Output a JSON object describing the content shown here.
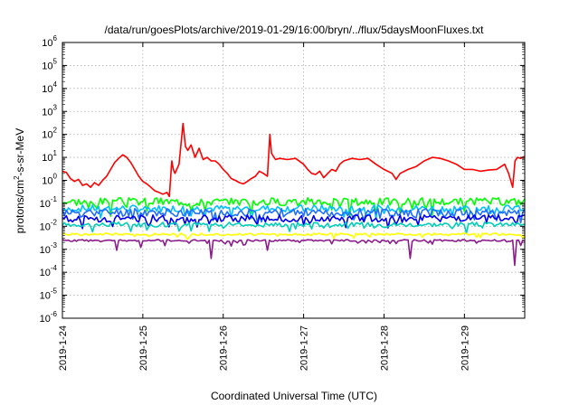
{
  "chart_data": {
    "type": "line",
    "title": "/data/run/goesPlots/archive/2019-01-29/16:00/bryn/../flux/5daysMoonFluxes.txt",
    "xlabel": "Coordinated Universal Time (UTC)",
    "ylabel_parts": {
      "base": "protons/cm",
      "sup": "2",
      "tail": "-s-sr-MeV"
    },
    "yscale": "log",
    "ylim": [
      1e-06,
      1000000.0
    ],
    "y_tick_exponents": [
      -6,
      -5,
      -4,
      -3,
      -2,
      -1,
      0,
      1,
      2,
      3,
      4,
      5,
      6
    ],
    "y_tick_base": "10",
    "xlim_days": [
      0,
      5.75
    ],
    "x_tick_labels": [
      "2019-1-24",
      "2019-1-25",
      "2019-1-26",
      "2019-1-27",
      "2019-1-28",
      "2019-1-29"
    ],
    "x_tick_days": [
      0,
      1,
      2,
      3,
      4,
      5
    ],
    "grid": true,
    "series": [
      {
        "color": "#ff0000",
        "points": [
          [
            0,
            2.5
          ],
          [
            0.05,
            2.2
          ],
          [
            0.1,
            1.2
          ],
          [
            0.15,
            0.9
          ],
          [
            0.2,
            1.1
          ],
          [
            0.25,
            0.6
          ],
          [
            0.3,
            0.7
          ],
          [
            0.35,
            0.5
          ],
          [
            0.4,
            0.8
          ],
          [
            0.45,
            0.6
          ],
          [
            0.5,
            1.0
          ],
          [
            0.55,
            1.5
          ],
          [
            0.6,
            3
          ],
          [
            0.65,
            6
          ],
          [
            0.7,
            9
          ],
          [
            0.75,
            13
          ],
          [
            0.8,
            10
          ],
          [
            0.85,
            6
          ],
          [
            0.9,
            3
          ],
          [
            0.95,
            1.5
          ],
          [
            1.0,
            0.9
          ],
          [
            1.05,
            0.7
          ],
          [
            1.1,
            0.5
          ],
          [
            1.15,
            0.35
          ],
          [
            1.2,
            0.3
          ],
          [
            1.25,
            0.25
          ],
          [
            1.3,
            0.3
          ],
          [
            1.33,
            0.2
          ],
          [
            1.36,
            7
          ],
          [
            1.38,
            3
          ],
          [
            1.4,
            2
          ],
          [
            1.45,
            5
          ],
          [
            1.5,
            300
          ],
          [
            1.53,
            30
          ],
          [
            1.56,
            20
          ],
          [
            1.6,
            35
          ],
          [
            1.65,
            10
          ],
          [
            1.7,
            25
          ],
          [
            1.75,
            8
          ],
          [
            1.8,
            10
          ],
          [
            1.85,
            7
          ],
          [
            1.9,
            7
          ],
          [
            1.95,
            5
          ],
          [
            2.0,
            3
          ],
          [
            2.05,
            2
          ],
          [
            2.1,
            1.2
          ],
          [
            2.15,
            1.0
          ],
          [
            2.2,
            0.8
          ],
          [
            2.25,
            0.7
          ],
          [
            2.3,
            0.9
          ],
          [
            2.35,
            1.2
          ],
          [
            2.4,
            1.5
          ],
          [
            2.45,
            2.5
          ],
          [
            2.5,
            2
          ],
          [
            2.55,
            1.5
          ],
          [
            2.58,
            100
          ],
          [
            2.6,
            15
          ],
          [
            2.65,
            8
          ],
          [
            2.7,
            9
          ],
          [
            2.8,
            8
          ],
          [
            2.9,
            9
          ],
          [
            3.0,
            5
          ],
          [
            3.05,
            3
          ],
          [
            3.1,
            2
          ],
          [
            3.15,
            1.8
          ],
          [
            3.2,
            2.5
          ],
          [
            3.25,
            1.3
          ],
          [
            3.3,
            2
          ],
          [
            3.35,
            3
          ],
          [
            3.4,
            2.5
          ],
          [
            3.45,
            5
          ],
          [
            3.5,
            7
          ],
          [
            3.6,
            9
          ],
          [
            3.7,
            8
          ],
          [
            3.8,
            9
          ],
          [
            3.9,
            5
          ],
          [
            4.0,
            3
          ],
          [
            4.1,
            2
          ],
          [
            4.15,
            1.1
          ],
          [
            4.2,
            2
          ],
          [
            4.3,
            3
          ],
          [
            4.4,
            4
          ],
          [
            4.5,
            7
          ],
          [
            4.6,
            10
          ],
          [
            4.7,
            9
          ],
          [
            4.8,
            7
          ],
          [
            4.9,
            5
          ],
          [
            5.0,
            3
          ],
          [
            5.1,
            3
          ],
          [
            5.2,
            2.5
          ],
          [
            5.3,
            2.8
          ],
          [
            5.4,
            3
          ],
          [
            5.5,
            5
          ],
          [
            5.55,
            2
          ],
          [
            5.6,
            0.5
          ],
          [
            5.63,
            7
          ],
          [
            5.66,
            10
          ],
          [
            5.7,
            9
          ],
          [
            5.75,
            11
          ]
        ]
      },
      {
        "color": "#00ff00",
        "base": 0.12,
        "amp": 0.35,
        "dip": 0.5,
        "seed": 3
      },
      {
        "color": "#00bfff",
        "base": 0.06,
        "amp": 0.3,
        "dip": 0.4,
        "seed": 7
      },
      {
        "color": "#1f6fff",
        "base": 0.04,
        "amp": 0.35,
        "dip": 0.4,
        "seed": 11
      },
      {
        "color": "#0000ee",
        "base": 0.022,
        "amp": 0.3,
        "dip": 0.35,
        "seed": 13
      },
      {
        "color": "#00cdb8",
        "base": 0.012,
        "amp": 0.2,
        "dip": 0.3,
        "seed": 17
      },
      {
        "color": "#ffff00",
        "base": 0.0045,
        "amp": 0.1,
        "dip": 0.2,
        "seed": 19
      },
      {
        "color": "#8b1c8b",
        "base": 0.0024,
        "amp": 0.08,
        "dip": 0.25,
        "seed": 23,
        "deep_dips": [
          [
            0.68,
            0.0009
          ],
          [
            0.97,
            0.0012
          ],
          [
            1.85,
            0.0004
          ],
          [
            2.55,
            0.0009
          ],
          [
            4.33,
            0.0004
          ],
          [
            5.63,
            0.0002
          ]
        ]
      }
    ]
  }
}
